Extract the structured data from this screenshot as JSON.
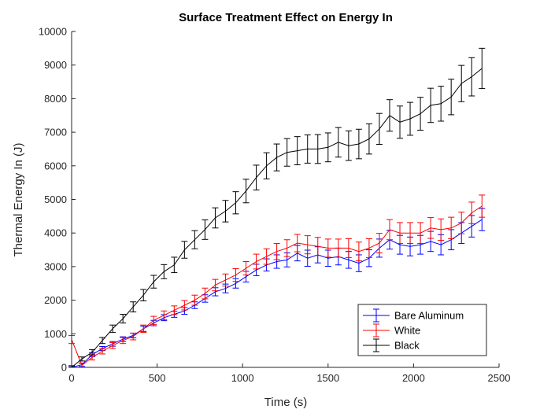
{
  "chart_data": {
    "type": "line",
    "title": "Surface Treatment Effect on Energy In",
    "xlabel": "Time (s)",
    "ylabel": "Thermal Energy In (J)",
    "xlim": [
      0,
      2500
    ],
    "ylim": [
      0,
      10000
    ],
    "xticks": [
      0,
      500,
      1000,
      1500,
      2000,
      2500
    ],
    "yticks": [
      0,
      1000,
      2000,
      3000,
      4000,
      5000,
      6000,
      7000,
      8000,
      9000,
      10000
    ],
    "grid": false,
    "legend_position": "bottom-right",
    "error_bars": true,
    "series": [
      {
        "name": "Bare Aluminum",
        "color": "#0000ff",
        "x": [
          0,
          60,
          120,
          180,
          240,
          300,
          360,
          420,
          480,
          540,
          600,
          660,
          720,
          780,
          840,
          900,
          960,
          1020,
          1080,
          1140,
          1200,
          1260,
          1320,
          1380,
          1440,
          1500,
          1560,
          1620,
          1680,
          1740,
          1800,
          1860,
          1920,
          1980,
          2040,
          2100,
          2160,
          2220,
          2280,
          2340,
          2400
        ],
        "y": [
          0,
          80,
          380,
          560,
          700,
          840,
          950,
          1150,
          1320,
          1480,
          1580,
          1680,
          1850,
          2050,
          2250,
          2350,
          2500,
          2700,
          2900,
          3050,
          3150,
          3200,
          3400,
          3250,
          3350,
          3250,
          3300,
          3200,
          3100,
          3250,
          3550,
          3800,
          3650,
          3600,
          3650,
          3750,
          3650,
          3800,
          4000,
          4200,
          4400
        ],
        "error": [
          40,
          50,
          60,
          60,
          70,
          70,
          70,
          80,
          80,
          90,
          90,
          100,
          100,
          110,
          120,
          130,
          140,
          160,
          170,
          180,
          200,
          210,
          230,
          240,
          240,
          240,
          250,
          250,
          250,
          250,
          270,
          280,
          280,
          280,
          280,
          300,
          300,
          300,
          310,
          320,
          330
        ]
      },
      {
        "name": "White",
        "color": "#ff0000",
        "x": [
          0,
          60,
          120,
          180,
          240,
          300,
          360,
          420,
          480,
          540,
          600,
          660,
          720,
          780,
          840,
          900,
          960,
          1020,
          1080,
          1140,
          1200,
          1260,
          1320,
          1380,
          1440,
          1500,
          1560,
          1620,
          1680,
          1740,
          1800,
          1860,
          1920,
          1980,
          2040,
          2100,
          2160,
          2220,
          2280,
          2340,
          2400
        ],
        "y": [
          830,
          60,
          300,
          480,
          650,
          800,
          920,
          1150,
          1400,
          1550,
          1700,
          1850,
          2000,
          2200,
          2450,
          2600,
          2750,
          2950,
          3150,
          3300,
          3450,
          3550,
          3700,
          3650,
          3600,
          3550,
          3550,
          3550,
          3450,
          3550,
          3700,
          4100,
          4000,
          4000,
          4000,
          4150,
          4100,
          4150,
          4300,
          4600,
          4800
        ],
        "error": [
          120,
          60,
          80,
          80,
          90,
          90,
          100,
          110,
          120,
          130,
          130,
          140,
          150,
          160,
          170,
          180,
          190,
          200,
          220,
          230,
          240,
          250,
          260,
          270,
          270,
          270,
          270,
          280,
          280,
          280,
          290,
          300,
          310,
          310,
          310,
          310,
          320,
          320,
          320,
          320,
          330
        ]
      },
      {
        "name": "Black",
        "color": "#000000",
        "x": [
          0,
          60,
          120,
          180,
          240,
          300,
          360,
          420,
          480,
          540,
          600,
          660,
          720,
          780,
          840,
          900,
          960,
          1020,
          1080,
          1140,
          1200,
          1260,
          1320,
          1380,
          1440,
          1500,
          1560,
          1620,
          1680,
          1740,
          1800,
          1860,
          1920,
          1980,
          2040,
          2100,
          2160,
          2220,
          2280,
          2340,
          2400
        ],
        "y": [
          0,
          250,
          450,
          800,
          1150,
          1450,
          1800,
          2150,
          2550,
          2850,
          3050,
          3500,
          3800,
          4100,
          4450,
          4650,
          4900,
          5250,
          5650,
          6000,
          6250,
          6400,
          6450,
          6500,
          6500,
          6550,
          6700,
          6600,
          6650,
          6800,
          7100,
          7500,
          7300,
          7400,
          7550,
          7800,
          7850,
          8050,
          8450,
          8650,
          8900
        ],
        "error": [
          50,
          60,
          80,
          90,
          110,
          130,
          150,
          170,
          190,
          210,
          230,
          250,
          270,
          290,
          300,
          320,
          330,
          350,
          370,
          390,
          400,
          410,
          420,
          420,
          430,
          430,
          440,
          440,
          440,
          450,
          460,
          470,
          480,
          490,
          490,
          510,
          520,
          530,
          540,
          570,
          600
        ]
      }
    ]
  }
}
